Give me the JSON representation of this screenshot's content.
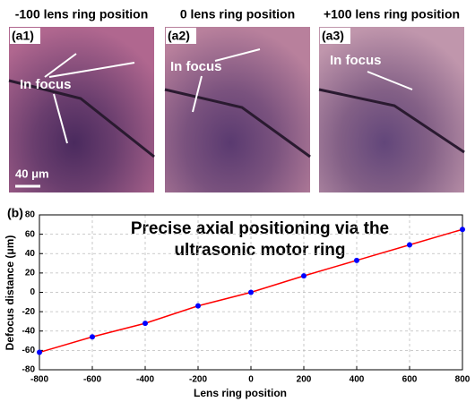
{
  "panels": [
    {
      "title": "-100 lens ring position",
      "label": "(a1)",
      "annotation": "In focus",
      "scale_bar": "40 μm"
    },
    {
      "title": "0 lens ring position",
      "label": "(a2)",
      "annotation": "In focus"
    },
    {
      "title": "+100 lens ring position",
      "label": "(a3)",
      "annotation": "In focus"
    }
  ],
  "chart_data": {
    "type": "line",
    "label": "(b)",
    "annotation": [
      "Precise axial positioning via the",
      "ultrasonic motor ring"
    ],
    "x": [
      -800,
      -600,
      -400,
      -200,
      0,
      200,
      400,
      600,
      800
    ],
    "series": [
      {
        "color": "#ff0000",
        "marker_color": "#0000ff",
        "values": [
          -62,
          -46,
          -32,
          -14,
          0,
          17,
          33,
          49,
          65
        ]
      }
    ],
    "xlabel": "Lens ring position",
    "ylabel": "Defocus distance (μm)",
    "xlim": [
      -800,
      800
    ],
    "ylim": [
      -80,
      80
    ],
    "xticks": [
      -800,
      -600,
      -400,
      -200,
      0,
      200,
      400,
      600,
      800
    ],
    "yticks": [
      -80,
      -60,
      -40,
      -20,
      0,
      20,
      40,
      60,
      80
    ],
    "grid": true
  }
}
